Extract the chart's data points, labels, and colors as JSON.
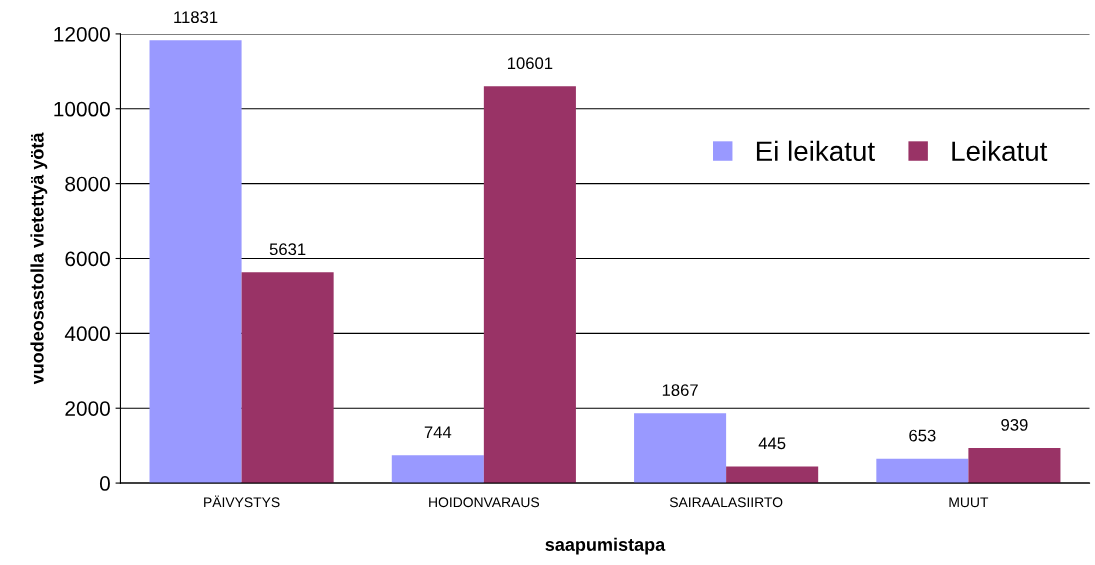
{
  "chart_data": {
    "type": "bar",
    "xlabel": "saapumistapa",
    "ylabel": "vuodeosastolla vietettyä yötä",
    "categories": [
      "PÄIVYSTYS",
      "HOIDONVARAUS",
      "SAIRAALASIIRTO",
      "MUUT"
    ],
    "series": [
      {
        "name": "Ei leikatut",
        "color": "#9999ff",
        "values": [
          11831,
          744,
          1867,
          653
        ]
      },
      {
        "name": "Leikatut",
        "color": "#993366",
        "values": [
          5631,
          10601,
          445,
          939
        ]
      }
    ],
    "ylim": [
      0,
      12000
    ],
    "yticks": [
      0,
      2000,
      4000,
      6000,
      8000,
      10000,
      12000
    ],
    "grid": "y",
    "legend": "top right",
    "data_labels": true
  }
}
